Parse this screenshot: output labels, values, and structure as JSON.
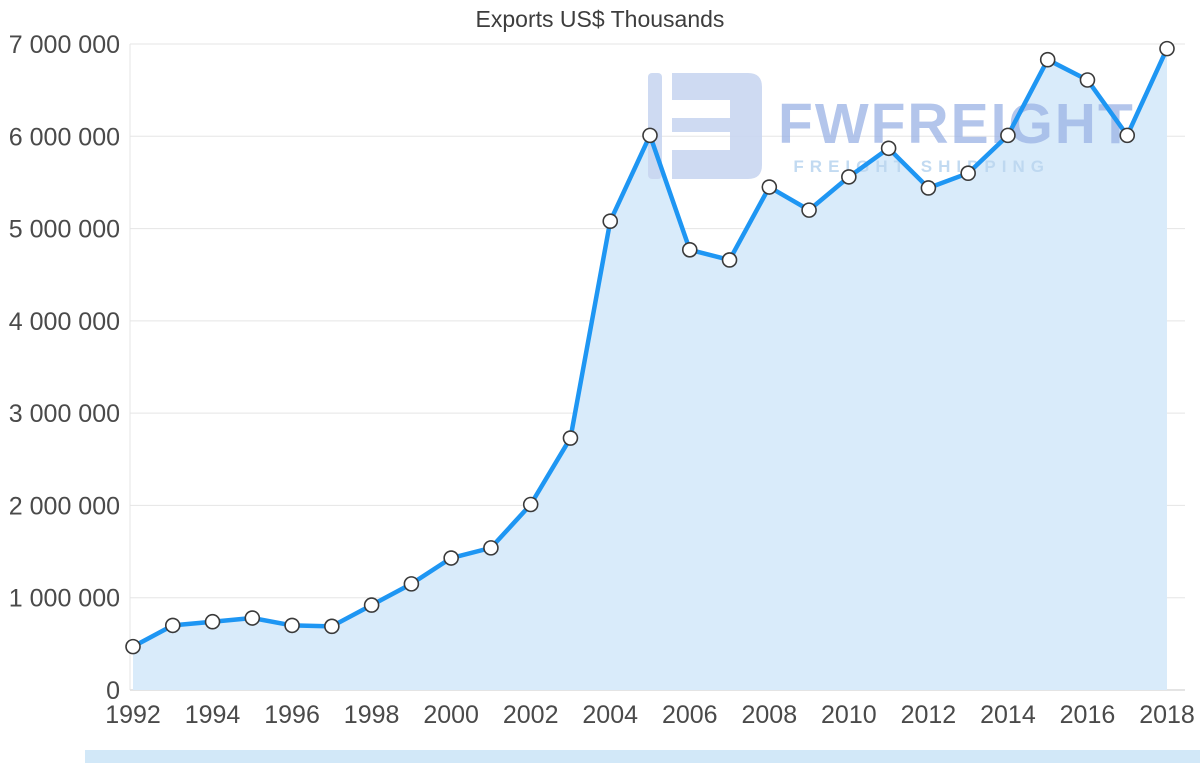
{
  "chart_data": {
    "type": "area",
    "title": "Exports US$ Thousands",
    "xlabel": "",
    "ylabel": "",
    "x": [
      1992,
      1993,
      1994,
      1995,
      1996,
      1997,
      1998,
      1999,
      2000,
      2001,
      2002,
      2003,
      2004,
      2005,
      2006,
      2007,
      2008,
      2009,
      2010,
      2011,
      2012,
      2013,
      2014,
      2015,
      2016,
      2017,
      2018
    ],
    "values": [
      470000,
      700000,
      740000,
      780000,
      700000,
      690000,
      920000,
      1150000,
      1430000,
      1540000,
      2010000,
      2730000,
      5080000,
      6010000,
      4770000,
      4660000,
      5450000,
      5200000,
      5560000,
      5870000,
      5440000,
      5600000,
      6010000,
      6830000,
      6610000,
      6010000,
      6950000
    ],
    "ylim": [
      0,
      7000000
    ],
    "ytick_step": 1000000,
    "ytick_format": "space-thousands",
    "xtick_step": 2,
    "grid": true,
    "legend": "none",
    "colors": {
      "line": "#1e96f3",
      "area_fill": "#d9ebfa",
      "point_fill": "#ffffff",
      "point_stroke": "#3a3a3a",
      "gridline": "#e5e5e5",
      "zero_line": "#c8c8c8",
      "axis_text": "#4a4a4a"
    }
  },
  "watermark": {
    "brand": "FWFREIGHT",
    "tagline": "FREIGHT SHIPPING",
    "logo_color": "#c9d6f1"
  },
  "scrollbar": {
    "color": "#d2e8f8"
  }
}
